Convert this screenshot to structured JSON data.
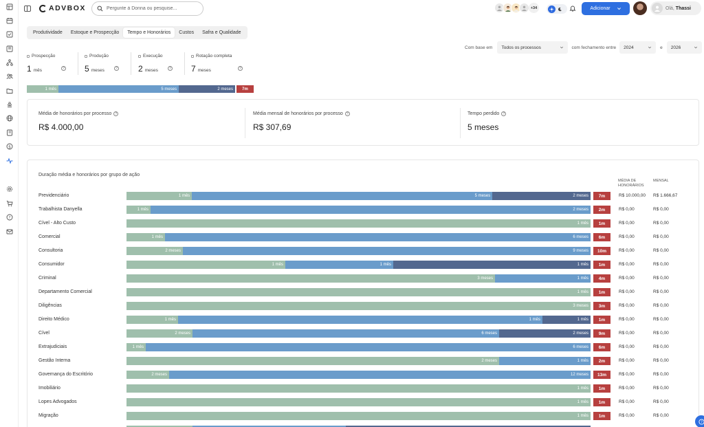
{
  "header": {
    "logo_text": "ADVBOX",
    "search_placeholder": "Pergunte à Donna ou pesquise...",
    "avatar_count": "+34",
    "add_button": "Adicionar",
    "greeting": "Olá,",
    "user_name": "Thassi"
  },
  "tabs": [
    {
      "label": "Produtividade",
      "active": false
    },
    {
      "label": "Estoque e Prospecção",
      "active": false
    },
    {
      "label": "Tempo e Honorários",
      "active": true
    },
    {
      "label": "Custos",
      "active": false
    },
    {
      "label": "Safra e Qualidade",
      "active": false
    }
  ],
  "filters": {
    "base_label": "Com base em",
    "base_value": "Todos os processos",
    "closing_label": "com fechamento entre",
    "year_from": "2024",
    "and_label": "e",
    "year_to": "2026"
  },
  "stages": [
    {
      "label": "Prospecção",
      "value": "1",
      "unit": "mês"
    },
    {
      "label": "Produção",
      "value": "5",
      "unit": "meses"
    },
    {
      "label": "Execução",
      "value": "2",
      "unit": "meses"
    },
    {
      "label": "Rotação completa",
      "value": "7",
      "unit": "meses"
    }
  ],
  "summary_bar": {
    "green": "1 mês",
    "blue": "5 meses",
    "navy": "2 meses",
    "total": "7m"
  },
  "kpis": [
    {
      "label": "Média de honorários por processo",
      "value": "R$ 4.000,00"
    },
    {
      "label": "Média mensal de honorários por processo",
      "value": "R$ 307,69"
    },
    {
      "label": "Tempo perdido",
      "value": "5 meses"
    }
  ],
  "table": {
    "title": "Duração média e honorários por grupo de ação",
    "col_media": "MÉDIA DE HONORÁRIOS",
    "col_mensal": "MENSAL",
    "rows": [
      {
        "name": "Previdenciário",
        "g": "1 mês",
        "b": "5 meses",
        "n": "2 meses",
        "total": "7m",
        "media": "R$ 10.000,00",
        "mensal": "R$ 1.666,67"
      },
      {
        "name": "Trabalhista Danyella",
        "g": "1 mês",
        "b": "2 meses",
        "n": "",
        "total": "2m",
        "media": "R$ 0,00",
        "mensal": "R$ 0,00"
      },
      {
        "name": "Cível - Alto Custo",
        "g": "1 mês",
        "b": "",
        "n": "",
        "total": "1m",
        "media": "R$ 0,00",
        "mensal": "R$ 0,00"
      },
      {
        "name": "Comercial",
        "g": "1 mês",
        "b": "6 meses",
        "n": "",
        "total": "6m",
        "media": "R$ 0,00",
        "mensal": "R$ 0,00"
      },
      {
        "name": "Consultoria",
        "g": "2 meses",
        "b": "9 meses",
        "n": "",
        "total": "10m",
        "media": "R$ 0,00",
        "mensal": "R$ 0,00"
      },
      {
        "name": "Consumidor",
        "g": "1 mês",
        "b": "1 mês",
        "n": "1 mês",
        "total": "1m",
        "media": "R$ 0,00",
        "mensal": "R$ 0,00"
      },
      {
        "name": "Criminal",
        "g": "3 meses",
        "b": "1 mês",
        "n": "",
        "total": "4m",
        "media": "R$ 0,00",
        "mensal": "R$ 0,00"
      },
      {
        "name": "Departamento Comercial",
        "g": "1 mês",
        "b": "",
        "n": "",
        "total": "1m",
        "media": "R$ 0,00",
        "mensal": "R$ 0,00"
      },
      {
        "name": "Diligências",
        "g": "3 meses",
        "b": "",
        "n": "",
        "total": "3m",
        "media": "R$ 0,00",
        "mensal": "R$ 0,00"
      },
      {
        "name": "Direito Médico",
        "g": "1 mês",
        "b": "1 mês",
        "n": "1 mês",
        "total": "1m",
        "media": "R$ 0,00",
        "mensal": "R$ 0,00"
      },
      {
        "name": "Cível",
        "g": "2 meses",
        "b": "6 meses",
        "n": "2 meses",
        "total": "9m",
        "media": "R$ 0,00",
        "mensal": "R$ 0,00"
      },
      {
        "name": "Extrajudiciais",
        "g": "1 mês",
        "b": "6 meses",
        "n": "",
        "total": "6m",
        "media": "R$ 0,00",
        "mensal": "R$ 0,00"
      },
      {
        "name": "Gestão Interna",
        "g": "2 meses",
        "b": "1 mês",
        "n": "",
        "total": "2m",
        "media": "R$ 0,00",
        "mensal": "R$ 0,00"
      },
      {
        "name": "Governança do Escritório",
        "g": "2 meses",
        "b": "12 meses",
        "n": "",
        "total": "13m",
        "media": "R$ 0,00",
        "mensal": "R$ 0,00"
      },
      {
        "name": "Imobiliário",
        "g": "1 mês",
        "b": "",
        "n": "",
        "total": "1m",
        "media": "R$ 0,00",
        "mensal": "R$ 0,00"
      },
      {
        "name": "Lopes Advogados",
        "g": "1 mês",
        "b": "",
        "n": "",
        "total": "1m",
        "media": "R$ 0,00",
        "mensal": "R$ 0,00"
      },
      {
        "name": "Migração",
        "g": "1 mês",
        "b": "",
        "n": "",
        "total": "1m",
        "media": "R$ 0,00",
        "mensal": "R$ 0,00"
      }
    ]
  },
  "colors": {
    "green": "#9fbfac",
    "blue": "#6a9ccb",
    "navy": "#53688f",
    "red": "#b7403f",
    "accent": "#2e6fe0"
  },
  "icons": {
    "sidebar": [
      "dashboard-icon",
      "checklist-icon",
      "calendar-icon",
      "workflow-icon",
      "people-icon",
      "folder-icon",
      "stamp-icon",
      "globe-icon",
      "book-icon",
      "dollar-icon",
      "activity-icon",
      "settings-icon",
      "cart-icon",
      "help-icon",
      "mail-icon"
    ]
  }
}
